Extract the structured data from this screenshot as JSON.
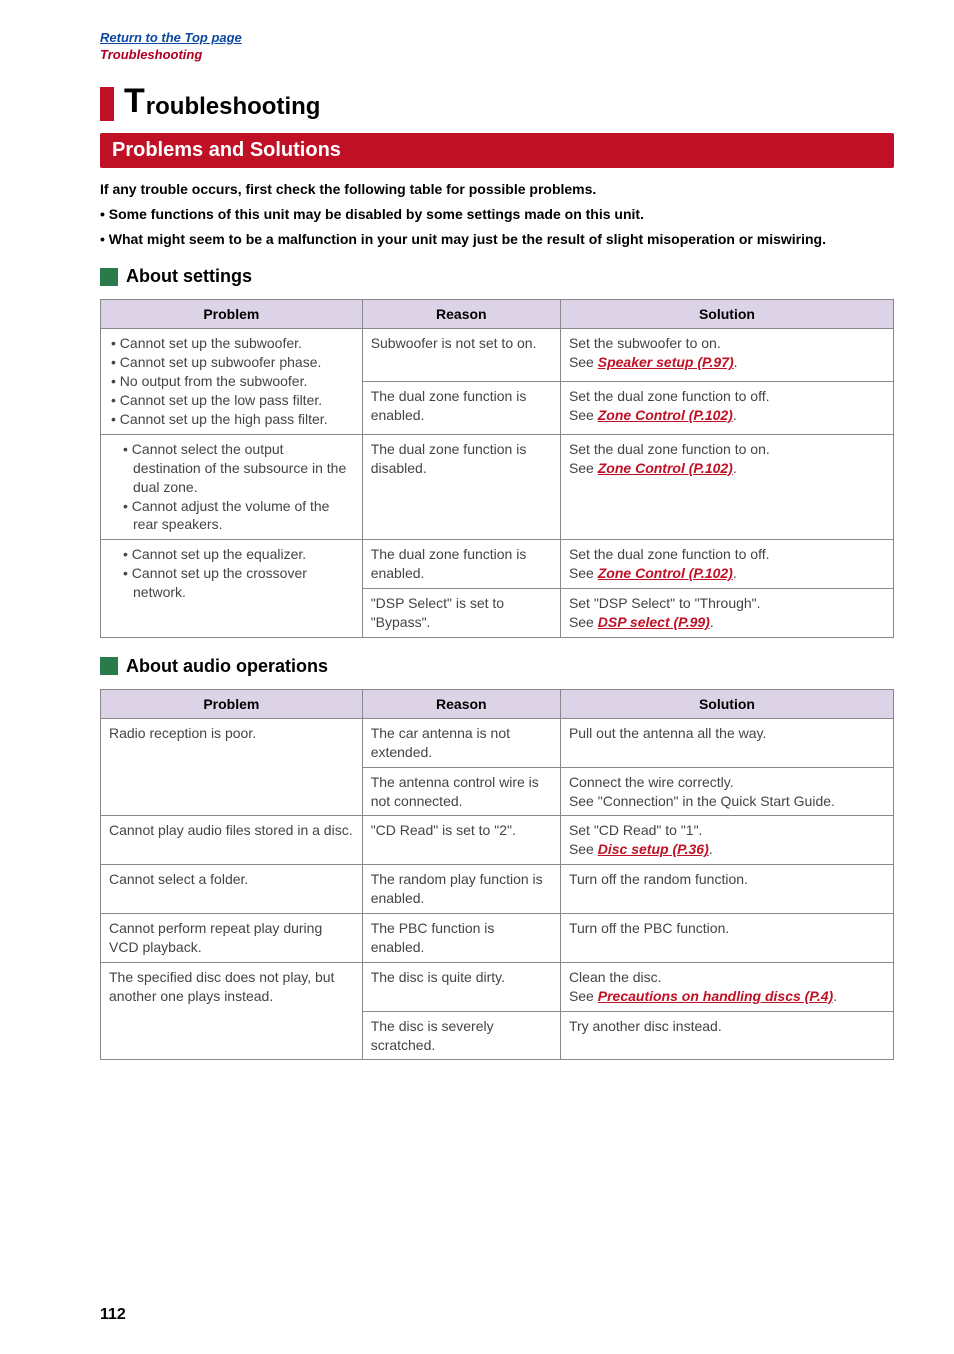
{
  "header": {
    "top_link": "Return to the Top page",
    "sub_link": "Troubleshooting"
  },
  "title": {
    "first": "T",
    "rest": "roubleshooting"
  },
  "section_heading": "Problems and Solutions",
  "intro": {
    "line1": "If any trouble occurs, first check the following table for possible problems.",
    "bullet1": "• Some functions of this unit may be disabled by some settings made on this unit.",
    "bullet2": "• What might seem to be a malfunction in your unit may just be the result of slight misoperation or miswiring."
  },
  "sub1": "About settings",
  "table1": {
    "headers": {
      "problem": "Problem",
      "reason": "Reason",
      "solution": "Solution"
    },
    "r1": {
      "p1": "• Cannot set up the subwoofer.",
      "p2": "• Cannot set up subwoofer phase.",
      "p3": "• No output from the subwoofer.",
      "p4": "• Cannot set up the low pass filter.",
      "p5": "• Cannot set up the high pass filter.",
      "reason1": "Subwoofer is not set to on.",
      "sol1a": "Set the subwoofer to on.",
      "sol1b_pre": "See ",
      "sol1b_link": "Speaker setup (P.97)",
      "sol1b_post": ".",
      "reason2": "The dual zone function is enabled.",
      "sol2a": "Set the dual zone function to off.",
      "sol2b_pre": "See ",
      "sol2b_link": "Zone Control (P.102)",
      "sol2b_post": "."
    },
    "r2": {
      "p1": "• Cannot select the output destination of the subsource in the dual zone.",
      "p2": "• Cannot adjust the volume of the rear speakers.",
      "reason": "The dual zone function is disabled.",
      "sol_a": "Set the dual zone function to on.",
      "sol_b_pre": "See ",
      "sol_b_link": "Zone Control (P.102)",
      "sol_b_post": "."
    },
    "r3": {
      "p1": "• Cannot set up the equalizer.",
      "p2": "• Cannot set up the crossover network.",
      "reason1": "The dual zone function is enabled.",
      "sol1a": "Set the dual zone function to off.",
      "sol1b_pre": "See ",
      "sol1b_link": "Zone Control (P.102)",
      "sol1b_post": ".",
      "reason2": "\"DSP Select\" is set to \"Bypass\".",
      "sol2a": "Set \"DSP Select\" to \"Through\".",
      "sol2b_pre": "See ",
      "sol2b_link": "DSP select (P.99)",
      "sol2b_post": "."
    }
  },
  "sub2": "About audio operations",
  "table2": {
    "headers": {
      "problem": "Problem",
      "reason": "Reason",
      "solution": "Solution"
    },
    "r1": {
      "problem": "Radio reception is poor.",
      "reason1": "The car antenna is not extended.",
      "sol1": "Pull out the antenna all the way.",
      "reason2": "The antenna control wire is not connected.",
      "sol2a": "Connect the wire correctly.",
      "sol2b": "See \"Connection\" in the Quick Start Guide."
    },
    "r2": {
      "problem": "Cannot play audio files stored in a disc.",
      "reason": "\"CD Read\" is set to \"2\".",
      "sol_a": "Set \"CD Read\" to \"1\".",
      "sol_b_pre": "See ",
      "sol_b_link": "Disc setup (P.36)",
      "sol_b_post": "."
    },
    "r3": {
      "problem": "Cannot select a folder.",
      "reason": "The random play function is enabled.",
      "sol": "Turn off the random function."
    },
    "r4": {
      "problem": "Cannot perform repeat play during VCD playback.",
      "reason": "The PBC function is enabled.",
      "sol": "Turn off the PBC function."
    },
    "r5": {
      "problem": "The specified disc does not play, but another one plays instead.",
      "reason1": "The disc is quite dirty.",
      "sol1a": "Clean the disc.",
      "sol1b_pre": "See ",
      "sol1b_link": "Precautions on handling discs (P.4)",
      "sol1b_post": ".",
      "reason2": "The disc is severely scratched.",
      "sol2": "Try another disc instead."
    }
  },
  "page_number": "112",
  "colors": {
    "accent_red": "#c01025",
    "accent_green": "#2b7a4b",
    "header_bg": "#ddd3e6",
    "link_blue": "#0b4aa0",
    "border": "#888888"
  }
}
